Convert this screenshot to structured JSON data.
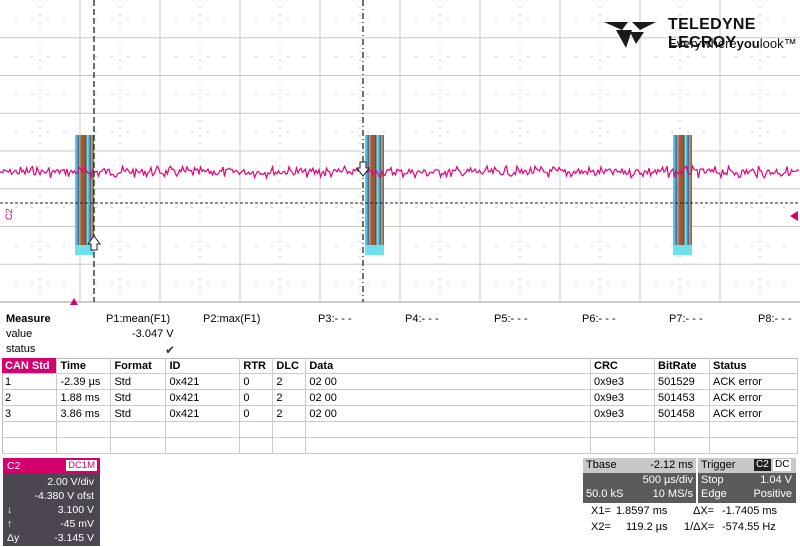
{
  "brand": {
    "name": "TELEDYNE LECROY",
    "tagline_pre": "Everywhere",
    "tagline_bold": "you",
    "tagline_post": "look"
  },
  "channel_label": "C2",
  "colors": {
    "trace": "#e6007a",
    "accent": "#d4006e",
    "can_overlay": "#3cc8dc"
  },
  "measure": {
    "title": "Measure",
    "row_value_label": "value",
    "row_status_label": "status",
    "params": [
      "P1:mean(F1)",
      "P2:max(F1)",
      "P3:- - -",
      "P4:- - -",
      "P5:- - -",
      "P6:- - -",
      "P7:- - -",
      "P8:- - -"
    ],
    "p1_value": "-3.047 V",
    "p1_status_icon": "checkmark-icon"
  },
  "can_table": {
    "headers": [
      "CAN Std",
      "Time",
      "Format",
      "ID",
      "RTR",
      "DLC",
      "Data",
      "CRC",
      "BitRate",
      "Status"
    ],
    "rows": [
      [
        "1",
        "-2.39 µs",
        "Std",
        "0x421",
        "0",
        "2",
        "02 00",
        "0x9e3",
        "501529",
        "ACK error"
      ],
      [
        "2",
        "1.88 ms",
        "Std",
        "0x421",
        "0",
        "2",
        "02 00",
        "0x9e3",
        "501453",
        "ACK error"
      ],
      [
        "3",
        "3.86 ms",
        "Std",
        "0x421",
        "0",
        "2",
        "02 00",
        "0x9e3",
        "501458",
        "ACK error"
      ]
    ]
  },
  "c2_panel": {
    "label": "C2",
    "coupling": "DC1M",
    "vdiv": "2.00 V/div",
    "offset": "-4.380 V ofst",
    "cursor_down": "3.100 V",
    "cursor_up": "-45 mV",
    "delta_y": "-3.145 V",
    "sym_down": "↓",
    "sym_up": "↑",
    "sym_delta": "Δy"
  },
  "timebase": {
    "label": "Tbase",
    "delay": "-2.12 ms",
    "tdiv": "500 µs/div",
    "samples": "50.0 kS",
    "rate": "10 MS/s"
  },
  "trigger": {
    "label": "Trigger",
    "source": "C2",
    "coupling": "DC",
    "mode": "Stop",
    "level": "1.04 V",
    "type": "Edge",
    "slope": "Positive"
  },
  "cursors": {
    "x1_label": "X1=",
    "x1": "1.8597 ms",
    "dx_label": "ΔX=",
    "dx": "-1.7405 ms",
    "x2_label": "X2=",
    "x2": "119.2 µs",
    "inv_label": "1/ΔX=",
    "inv": "-574.55 Hz"
  }
}
